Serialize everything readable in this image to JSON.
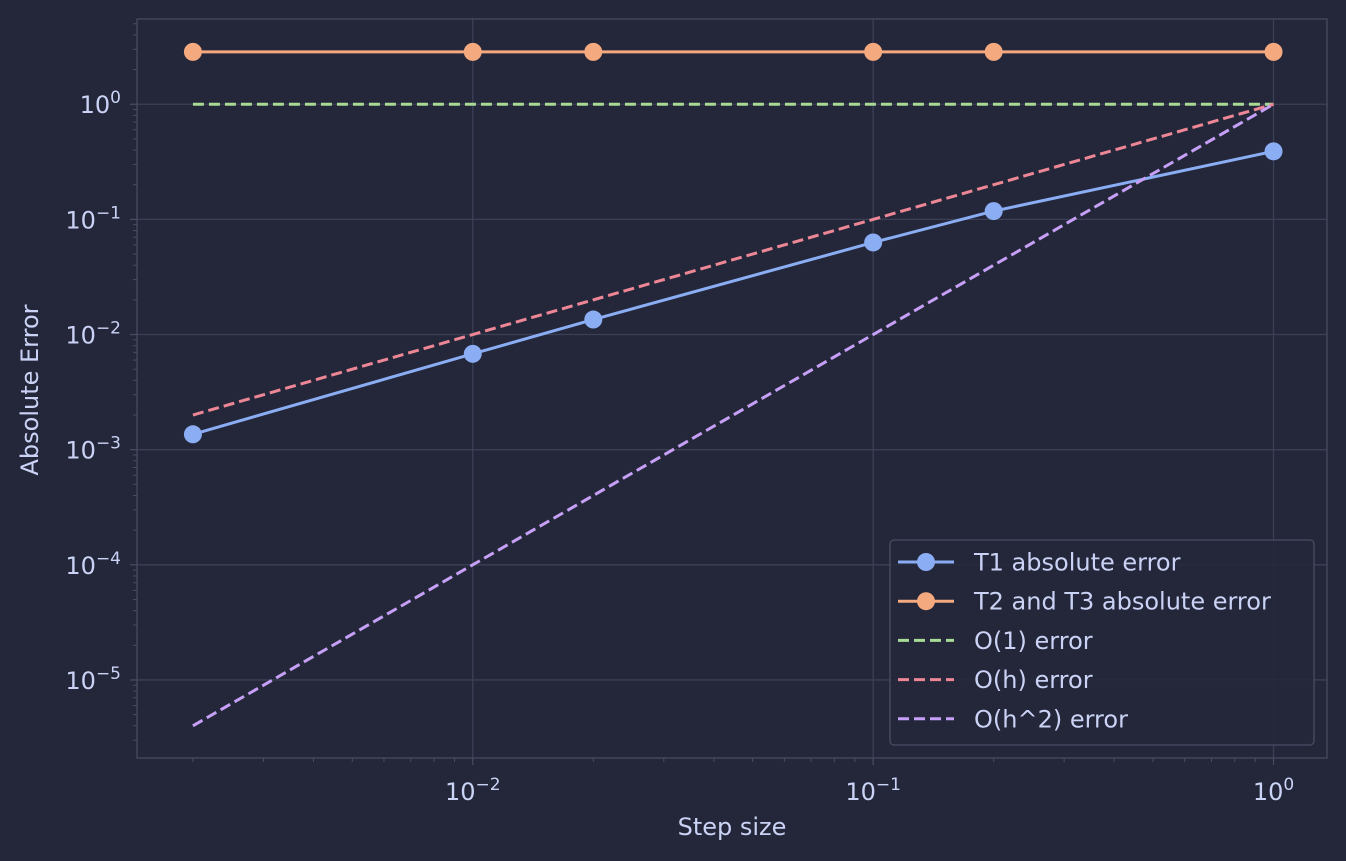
{
  "chart_data": {
    "type": "line",
    "title": "",
    "xlabel": "Step size",
    "ylabel": "Absolute Error",
    "xscale": "log",
    "yscale": "log",
    "xlim": [
      0.00145,
      1.36
    ],
    "ylim": [
      2.1e-06,
      5.5
    ],
    "grid": true,
    "legend_position": "lower-right",
    "x_ticks": [
      {
        "value": 0.01,
        "base": "10",
        "exp": "−2"
      },
      {
        "value": 0.1,
        "base": "10",
        "exp": "−1"
      },
      {
        "value": 1,
        "base": "10",
        "exp": "0"
      }
    ],
    "y_ticks": [
      {
        "value": 1,
        "base": "10",
        "exp": "0"
      },
      {
        "value": 0.1,
        "base": "10",
        "exp": "−1"
      },
      {
        "value": 0.01,
        "base": "10",
        "exp": "−2"
      },
      {
        "value": 0.001,
        "base": "10",
        "exp": "−3"
      },
      {
        "value": 0.0001,
        "base": "10",
        "exp": "−4"
      },
      {
        "value": 1e-05,
        "base": "10",
        "exp": "−5"
      }
    ],
    "series": [
      {
        "name": "T1 absolute error",
        "color": "#8aadf4",
        "style": "solid",
        "marker": true,
        "x": [
          0.002,
          0.01,
          0.02,
          0.1,
          0.2,
          1
        ],
        "y": [
          0.00136,
          0.0068,
          0.0135,
          0.063,
          0.118,
          0.39
        ]
      },
      {
        "name": "T2 and T3 absolute error",
        "color": "#f5a97f",
        "style": "solid",
        "marker": true,
        "x": [
          0.002,
          0.01,
          0.02,
          0.1,
          0.2,
          1
        ],
        "y": [
          2.85,
          2.85,
          2.85,
          2.85,
          2.85,
          2.85
        ]
      },
      {
        "name": "O(1) error",
        "color": "#a6da95",
        "style": "dashed",
        "marker": false,
        "x": [
          0.002,
          1
        ],
        "y": [
          1,
          1
        ]
      },
      {
        "name": "O(h) error",
        "color": "#ed8796",
        "style": "dashed",
        "marker": false,
        "x": [
          0.002,
          1
        ],
        "y": [
          0.002,
          1
        ]
      },
      {
        "name": "O(h^2) error",
        "color": "#c6a0f6",
        "style": "dashed",
        "marker": false,
        "x": [
          0.002,
          1
        ],
        "y": [
          4e-06,
          1
        ]
      }
    ]
  },
  "colors": {
    "background": "#24273a",
    "grid": "#3c4056",
    "axes": "#494d64",
    "text": "#cad3f5",
    "legend_bg": "#24273a"
  }
}
